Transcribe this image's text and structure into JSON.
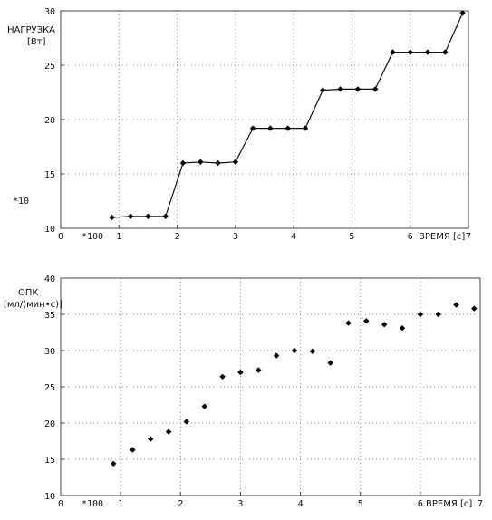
{
  "chart_data": [
    {
      "type": "line",
      "ylabel": "НАГРУЗКА",
      "yunit": "[Вт]",
      "xlabel": "ВРЕМЯ [c]",
      "xlim": [
        0,
        7
      ],
      "ylim": [
        10,
        30
      ],
      "xticks": [
        "0",
        "1",
        "2",
        "3",
        "4",
        "5",
        "6",
        "7"
      ],
      "yticks": [
        "10",
        "15",
        "20",
        "25",
        "30"
      ],
      "xscale_note": "*100",
      "yscale_note": "*10",
      "grid": true,
      "marker": "diamond",
      "x": [
        0.88,
        1.2,
        1.5,
        1.8,
        2.1,
        2.4,
        2.7,
        3.0,
        3.3,
        3.6,
        3.9,
        4.2,
        4.5,
        4.8,
        5.1,
        5.4,
        5.7,
        6.0,
        6.3,
        6.6,
        6.9
      ],
      "y": [
        11.0,
        11.1,
        11.1,
        11.1,
        16.0,
        16.1,
        16.0,
        16.1,
        19.2,
        19.2,
        19.2,
        19.2,
        22.7,
        22.8,
        22.8,
        22.8,
        26.2,
        26.2,
        26.2,
        26.2,
        29.8
      ]
    },
    {
      "type": "scatter",
      "ylabel": "ОПК",
      "yunit": "[мл/(мин•с)]",
      "xlabel": "ВРЕМЯ [c]",
      "xlim": [
        0,
        7
      ],
      "ylim": [
        10,
        40
      ],
      "xticks": [
        "0",
        "1",
        "2",
        "3",
        "4",
        "5",
        "6",
        "7"
      ],
      "yticks": [
        "10",
        "15",
        "20",
        "25",
        "30",
        "35",
        "40"
      ],
      "xscale_note": "*100",
      "grid": true,
      "marker": "diamond",
      "x": [
        0.88,
        1.2,
        1.5,
        1.8,
        2.1,
        2.4,
        2.7,
        3.0,
        3.3,
        3.6,
        3.9,
        4.2,
        4.5,
        4.8,
        5.1,
        5.4,
        5.7,
        6.0,
        6.3,
        6.6,
        6.9
      ],
      "y": [
        14.4,
        16.3,
        17.8,
        18.8,
        20.2,
        22.3,
        26.4,
        27.0,
        27.3,
        29.3,
        30.0,
        29.9,
        28.3,
        33.8,
        34.1,
        33.6,
        33.1,
        35.0,
        35.0,
        36.3,
        35.8
      ]
    }
  ]
}
